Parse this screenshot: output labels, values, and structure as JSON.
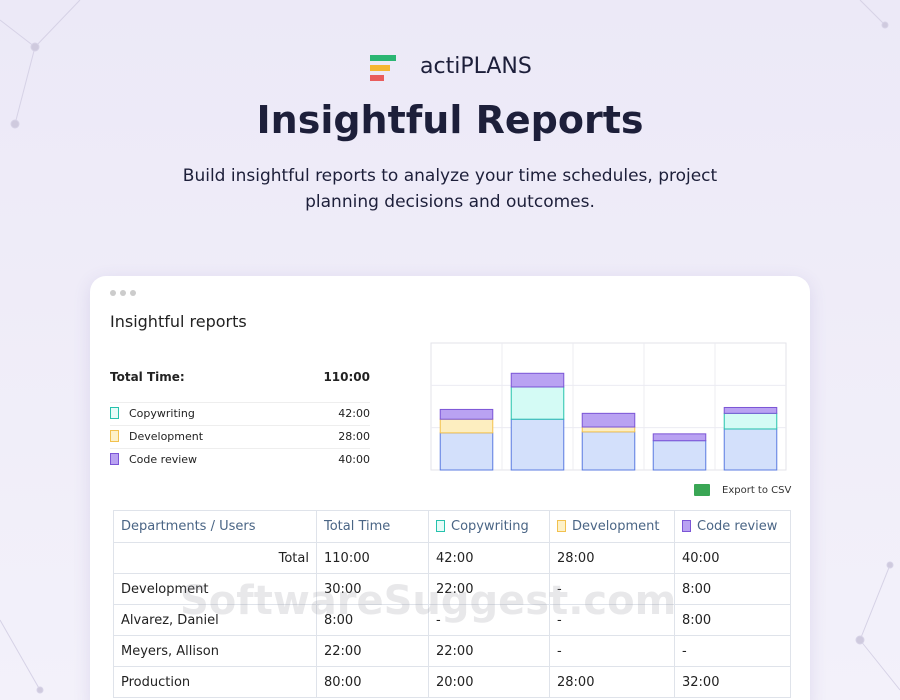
{
  "brand": "actiPLANS",
  "title": "Insightful Reports",
  "subtitle": [
    "Build insightful reports to analyze your time schedules, project",
    "planning decisions and outcomes."
  ],
  "card": {
    "title": "Insightful reports",
    "summary": {
      "label": "Total Time:",
      "value": "110:00",
      "items": [
        {
          "name": "Copywriting",
          "value": "42:00"
        },
        {
          "name": "Development",
          "value": "28:00"
        },
        {
          "name": "Code review",
          "value": "40:00"
        }
      ]
    },
    "export": "Export to CSV",
    "table": {
      "header": [
        "Departments / Users",
        "Total Time",
        "Copywriting",
        "Development",
        "Code review"
      ],
      "rows": [
        [
          "Total",
          "110:00",
          "42:00",
          "28:00",
          "40:00"
        ],
        [
          "Development",
          "30:00",
          "22:00",
          "-",
          "8:00"
        ],
        [
          "Alvarez, Daniel",
          "8:00",
          "-",
          "-",
          "8:00"
        ],
        [
          "Meyers, Allison",
          "22:00",
          "22:00",
          "-",
          "-"
        ],
        [
          "Production",
          "80:00",
          "20:00",
          "28:00",
          "32:00"
        ]
      ]
    }
  },
  "watermark": "SoftwareSuggest.com",
  "chart_data": {
    "type": "bar",
    "stacked": true,
    "grid": true,
    "categories": [
      null,
      null,
      null,
      null,
      null
    ],
    "ylim": [
      0,
      130
    ],
    "series": [
      {
        "color": "#d3e0fb",
        "values": [
          38,
          52,
          39,
          30,
          42
        ]
      },
      {
        "color": "#d4fbf5",
        "values": [
          0,
          33,
          0,
          0,
          16
        ]
      },
      {
        "color": "#fdeec0",
        "values": [
          14,
          0,
          5,
          0,
          0
        ]
      },
      {
        "color": "#b9a2f2",
        "values": [
          10,
          14,
          14,
          7,
          6
        ]
      }
    ]
  }
}
